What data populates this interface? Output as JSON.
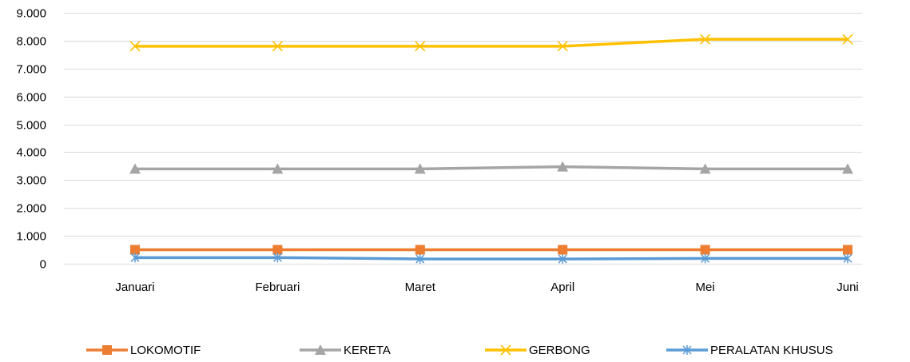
{
  "chart_data": {
    "type": "line",
    "categories": [
      "Januari",
      "Februari",
      "Maret",
      "April",
      "Mei",
      "Juni"
    ],
    "series": [
      {
        "name": "LOKOMOTIF",
        "values": [
          500,
          500,
          500,
          500,
          500,
          500
        ],
        "color": "#ED7D31",
        "marker": "square"
      },
      {
        "name": "KERETA",
        "values": [
          3400,
          3400,
          3400,
          3480,
          3400,
          3400
        ],
        "color": "#A5A5A5",
        "marker": "triangle"
      },
      {
        "name": "GERBONG",
        "values": [
          7800,
          7800,
          7800,
          7800,
          8050,
          8050
        ],
        "color": "#FFC000",
        "marker": "x"
      },
      {
        "name": "PERALATAN KHUSUS",
        "values": [
          220,
          220,
          170,
          170,
          190,
          190
        ],
        "color": "#5B9BD5",
        "marker": "star"
      }
    ],
    "y_ticks": [
      "0",
      "1.000",
      "2.000",
      "3.000",
      "4.000",
      "5.000",
      "6.000",
      "7.000",
      "8.000",
      "9.000"
    ],
    "ylim": [
      0,
      9000
    ],
    "grid": true,
    "legend_position": "bottom",
    "title": "",
    "xlabel": "",
    "ylabel": ""
  }
}
